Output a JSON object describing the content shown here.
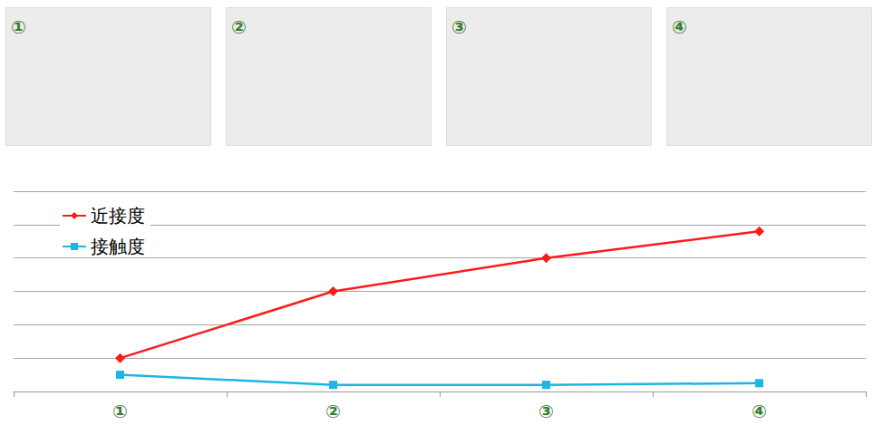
{
  "chart_data": {
    "type": "line",
    "categories": [
      "①",
      "②",
      "③",
      "④"
    ],
    "series": [
      {
        "name": "近接度",
        "color": "#ff1a1a",
        "marker": "diamond",
        "values": [
          1,
          3,
          4,
          4.8
        ]
      },
      {
        "name": "接触度",
        "color": "#1eb4e6",
        "marker": "square",
        "values": [
          0.5,
          0.2,
          0.2,
          0.25
        ]
      }
    ],
    "ylim": [
      0,
      6
    ],
    "yticks": [
      0,
      1,
      2,
      3,
      4,
      5,
      6
    ],
    "grid": true,
    "legend": "upper left",
    "tick_labels": "x"
  }
}
